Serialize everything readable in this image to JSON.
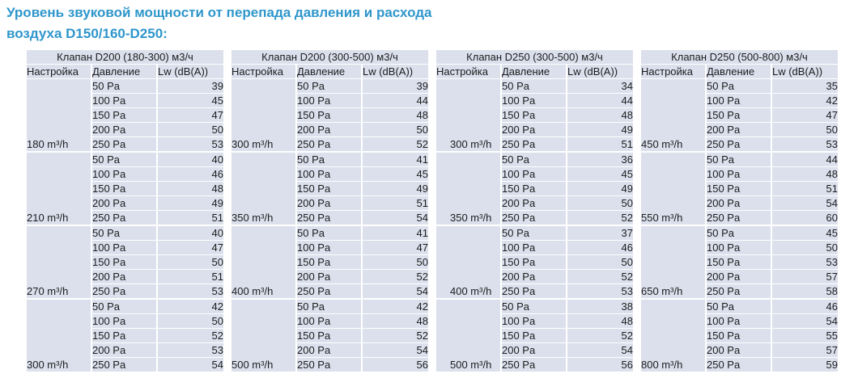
{
  "page": {
    "title_line1": "Уровень звуковой мощности от перепада давления и расхода",
    "title_line2": "воздуха D150/160-D250:"
  },
  "colors": {
    "title_blue": "#2e96cb",
    "cell_background": "#dbe0ec",
    "text": "#1c1c1e"
  },
  "columns": {
    "setting": "Настройка",
    "pressure": "Давление",
    "lw": "Lw (dB(A))"
  },
  "pressures": [
    "50 Pa",
    "100 Pa",
    "150 Pa",
    "200 Pa",
    "250 Pa"
  ],
  "tables": [
    {
      "caption": "Клапан D200 (180-300) м3/ч",
      "groups": [
        {
          "flow": "180 m³/h",
          "lw": [
            39,
            45,
            47,
            50,
            53
          ]
        },
        {
          "flow": "210 m³/h",
          "lw": [
            40,
            46,
            48,
            49,
            51
          ]
        },
        {
          "flow": "270 m³/h",
          "lw": [
            40,
            47,
            50,
            51,
            53
          ]
        },
        {
          "flow": "300 m³/h",
          "lw": [
            42,
            50,
            52,
            53,
            54
          ]
        }
      ]
    },
    {
      "caption": "Клапан D200 (300-500) м3/ч",
      "groups": [
        {
          "flow": "300 m³/h",
          "lw": [
            39,
            44,
            48,
            50,
            52
          ]
        },
        {
          "flow": "350 m³/h",
          "lw": [
            41,
            45,
            49,
            51,
            54
          ]
        },
        {
          "flow": "400 m³/h",
          "lw": [
            41,
            47,
            50,
            52,
            54
          ]
        },
        {
          "flow": "500 m³/h",
          "lw": [
            42,
            48,
            52,
            54,
            56
          ]
        }
      ]
    },
    {
      "caption": "Клапан D250 (300-500) м3/ч",
      "groups": [
        {
          "flow": "300 m³/h",
          "lw": [
            34,
            44,
            48,
            49,
            51
          ]
        },
        {
          "flow": "350 m³/h",
          "lw": [
            36,
            45,
            49,
            50,
            52
          ]
        },
        {
          "flow": "400 m³/h",
          "lw": [
            37,
            46,
            50,
            52,
            53
          ]
        },
        {
          "flow": "500 m³/h",
          "lw": [
            38,
            48,
            52,
            54,
            56
          ]
        }
      ]
    },
    {
      "caption": "Клапан D250 (500-800) м3/ч",
      "groups": [
        {
          "flow": "450 m³/h",
          "lw": [
            35,
            42,
            47,
            50,
            53
          ]
        },
        {
          "flow": "550 m³/h",
          "lw": [
            44,
            48,
            51,
            54,
            60
          ]
        },
        {
          "flow": "650 m³/h",
          "lw": [
            45,
            50,
            53,
            57,
            58
          ]
        },
        {
          "flow": "800 m³/h",
          "lw": [
            46,
            54,
            55,
            57,
            59
          ]
        }
      ]
    }
  ]
}
